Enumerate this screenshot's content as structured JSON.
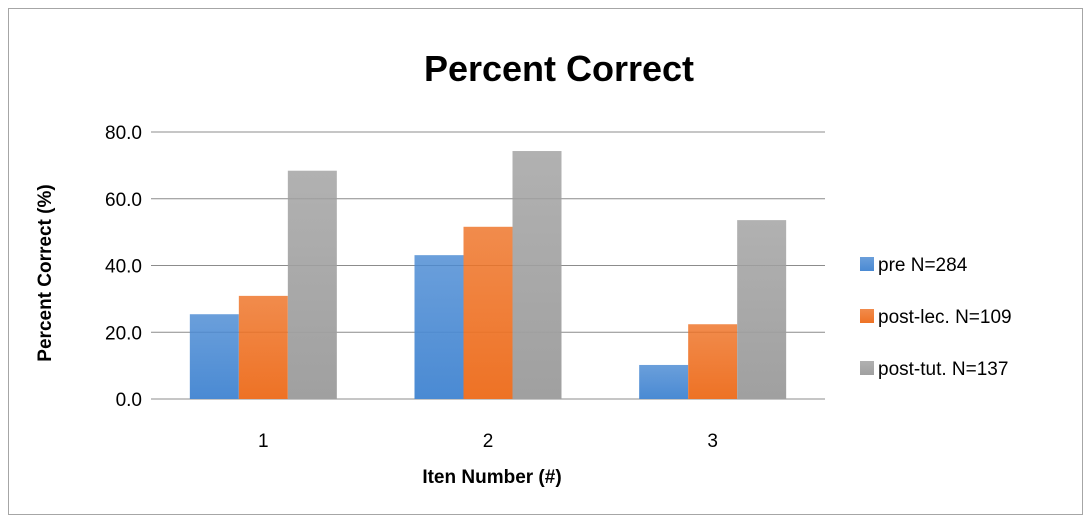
{
  "chart_data": {
    "type": "bar",
    "title": "Percent Correct",
    "xlabel": "Iten Number (#)",
    "ylabel": "Percent Correct (%)",
    "categories": [
      "1",
      "2",
      "3"
    ],
    "ylim": [
      0,
      80
    ],
    "yticks": [
      "0.0",
      "20.0",
      "40.0",
      "60.0",
      "80.0"
    ],
    "grid": true,
    "legend_position": "right",
    "series": [
      {
        "name": "pre N=284",
        "values": [
          25.4,
          43.1,
          10.2
        ],
        "color": "#4a8ad3"
      },
      {
        "name": "post-lec. N=109",
        "values": [
          30.9,
          51.6,
          22.4
        ],
        "color": "#ee7225"
      },
      {
        "name": "post-tut. N=137",
        "values": [
          68.4,
          74.3,
          53.6
        ],
        "color": "#a0a0a0"
      }
    ]
  }
}
